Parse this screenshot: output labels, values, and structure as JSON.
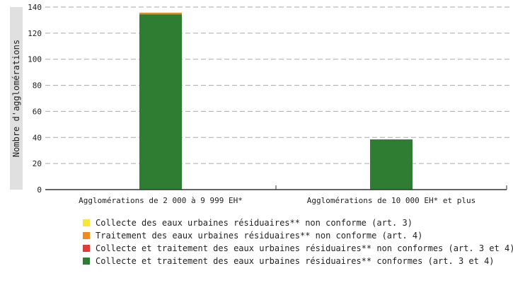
{
  "chart_data": {
    "type": "bar",
    "stacked": true,
    "title": "",
    "xlabel": "",
    "ylabel": "Nombre d'agglomérations",
    "ylim": [
      0,
      140
    ],
    "yticks": [
      0,
      20,
      40,
      60,
      80,
      100,
      120,
      140
    ],
    "grid": true,
    "legend_position": "bottom",
    "categories": [
      "Agglomérations de 2 000 à 9 999 EH*",
      "Agglomérations de 10 000 EH* et plus"
    ],
    "series": [
      {
        "name": "Collecte et traitement des eaux urbaines résiduaires** conformes (art. 3 et 4)",
        "color": "#2e7d32",
        "values": [
          134.5,
          38.5
        ]
      },
      {
        "name": "Collecte et traitement des eaux urbaines résiduaires** non conformes (art. 3 et 4)",
        "color": "#e53935",
        "values": [
          0,
          0
        ]
      },
      {
        "name": "Traitement des eaux urbaines résiduaires** non conforme (art. 4)",
        "color": "#f08a1c",
        "values": [
          1.2,
          0
        ]
      },
      {
        "name": "Collecte des eaux urbaines résiduaires** non conforme (art. 3)",
        "color": "#fbe53a",
        "values": [
          0,
          0
        ]
      }
    ],
    "legend_order": [
      3,
      2,
      1,
      0
    ]
  }
}
